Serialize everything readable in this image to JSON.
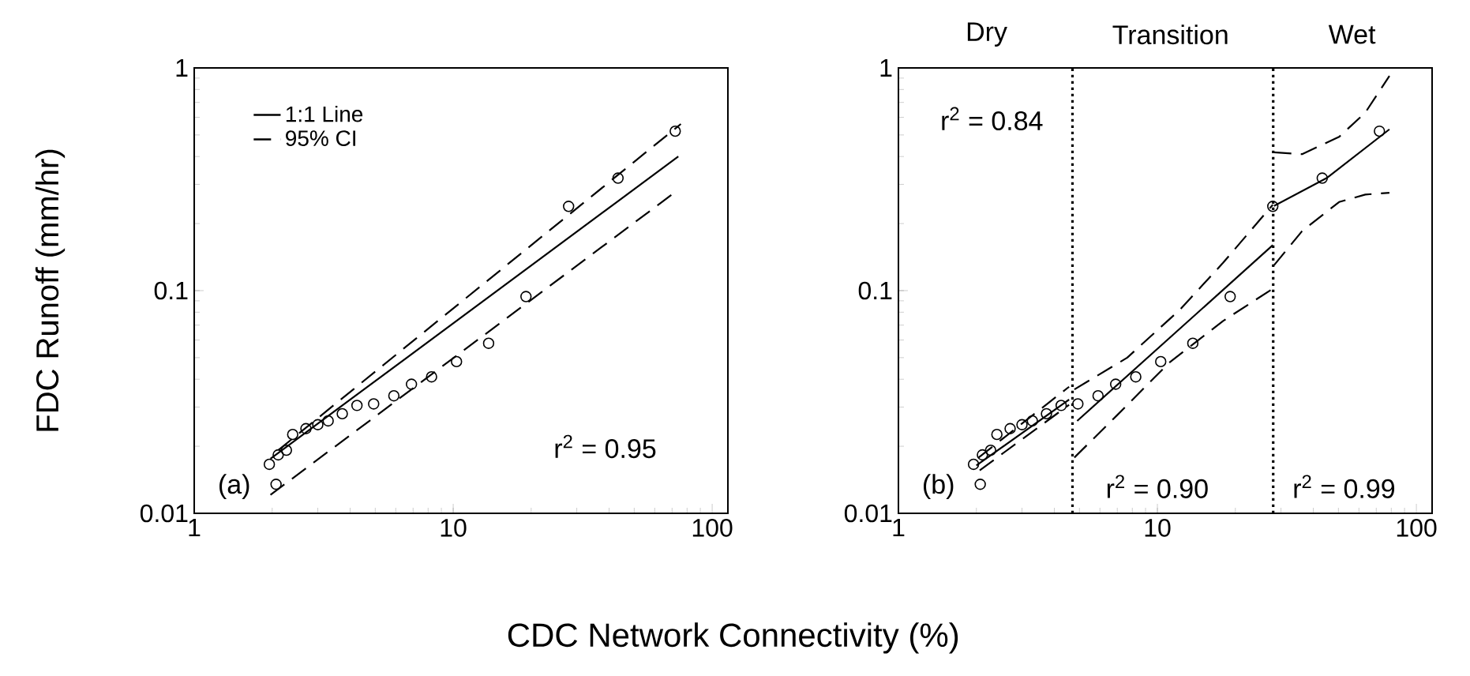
{
  "chart_data": [
    {
      "type": "scatter",
      "xlabel": "CDC Network Connectivity (%)",
      "ylabel": "FDC Runoff (mm/hr)",
      "log": "xy",
      "xlim": [
        1,
        115
      ],
      "ylim": [
        0.01,
        1
      ],
      "xticks": [
        1,
        10,
        100
      ],
      "yticks": [
        0.01,
        0.1,
        1
      ],
      "legend": "top left",
      "series": [
        {
          "marker": "circle",
          "color": "#000000",
          "x": [
            2.07,
            1.95,
            2.11,
            2.27,
            2.4,
            2.7,
            3.0,
            3.29,
            3.73,
            4.25,
            4.93,
            5.9,
            6.9,
            8.25,
            10.3,
            13.7,
            19.1,
            27.9,
            43.3,
            72
          ],
          "values": [
            0.0135,
            0.0166,
            0.0183,
            0.0192,
            0.0226,
            0.024,
            0.025,
            0.026,
            0.028,
            0.0305,
            0.031,
            0.0337,
            0.038,
            0.041,
            0.048,
            0.058,
            0.094,
            0.239,
            0.32,
            0.52
          ]
        },
        {
          "type": "line",
          "name": "1:1 Line",
          "line_style": "solid",
          "color": "#000000",
          "x": [
            1.97,
            74
          ],
          "values": [
            0.0176,
            0.4
          ]
        },
        {
          "type": "line",
          "name": "95% CI",
          "line_style": "dashed",
          "color": "#000000",
          "x": [
            2.11,
            75.7
          ],
          "values": [
            0.0192,
            0.56
          ]
        },
        {
          "type": "line",
          "line_style": "dashed",
          "color": "#000000",
          "x": [
            1.97,
            72
          ],
          "values": [
            0.0121,
            0.277
          ]
        }
      ],
      "annotations": [
        "r$^{2}$ = 0.95",
        "(a)"
      ]
    },
    {
      "type": "scatter",
      "log": "xy",
      "xlim": [
        1,
        115
      ],
      "ylim": [
        0.01,
        1
      ],
      "xticks": [
        1,
        10,
        100
      ],
      "yticks": [
        0.01,
        0.1,
        1
      ],
      "legend": false,
      "series": [
        {
          "marker": "circle",
          "color": "#000000",
          "x": [
            2.07,
            1.95,
            2.11,
            2.27,
            2.4,
            2.7,
            3.0,
            3.29,
            3.73,
            4.25,
            4.93,
            5.9,
            6.9,
            8.25,
            10.3,
            13.7,
            19.1,
            27.9,
            43.3,
            72
          ],
          "values": [
            0.0135,
            0.0166,
            0.0183,
            0.0192,
            0.0226,
            0.024,
            0.025,
            0.026,
            0.028,
            0.0305,
            0.031,
            0.0337,
            0.038,
            0.041,
            0.048,
            0.058,
            0.094,
            0.239,
            0.32,
            0.52
          ]
        },
        {
          "type": "line",
          "line_style": "solid",
          "color": "#000000",
          "x": [
            2.0,
            4.56
          ],
          "values": [
            0.0164,
            0.0324
          ]
        },
        {
          "type": "line",
          "line_style": "dashed",
          "color": "#000000",
          "x": [
            2.04,
            4.56
          ],
          "values": [
            0.0178,
            0.037
          ]
        },
        {
          "type": "line",
          "line_style": "dashed",
          "color": "#000000",
          "x": [
            2.06,
            4.56
          ],
          "values": [
            0.0156,
            0.0307
          ]
        },
        {
          "type": "line",
          "line_style": "solid",
          "color": "#000000",
          "x": [
            4.9,
            27.9
          ],
          "values": [
            0.026,
            0.16
          ]
        },
        {
          "type": "line",
          "line_style": "dashed",
          "color": "#000000",
          "x": [
            4.78,
            7.65,
            12.2,
            17.9,
            27.9
          ],
          "values": [
            0.036,
            0.05,
            0.082,
            0.133,
            0.243
          ]
        },
        {
          "type": "line",
          "line_style": "dashed",
          "color": "#000000",
          "x": [
            4.78,
            6.97,
            11.1,
            17.9,
            27.9
          ],
          "values": [
            0.0178,
            0.0275,
            0.0474,
            0.073,
            0.102
          ]
        },
        {
          "type": "line",
          "line_style": "solid",
          "color": "#000000",
          "x": [
            28.2,
            45,
            78.7
          ],
          "values": [
            0.24,
            0.32,
            0.53
          ]
        },
        {
          "type": "line",
          "line_style": "dashed",
          "color": "#000000",
          "x": [
            28.2,
            36.2,
            50.3,
            63.5,
            78.7
          ],
          "values": [
            0.418,
            0.41,
            0.49,
            0.63,
            0.92
          ]
        },
        {
          "type": "line",
          "line_style": "dashed",
          "color": "#000000",
          "x": [
            28.2,
            36.2,
            50.3,
            63.5,
            78.7
          ],
          "values": [
            0.13,
            0.185,
            0.25,
            0.27,
            0.275
          ]
        }
      ],
      "ref_lines": [
        {
          "axis": "x",
          "value": 4.7,
          "line_style": "dotted",
          "color": "#000000"
        },
        {
          "axis": "x",
          "value": 28,
          "line_style": "dotted",
          "color": "#000000"
        }
      ],
      "annotations": [
        "Dry",
        "Transition",
        "Wet",
        "r$^{2}$ = 0.84",
        "r$^{2}$ = 0.90",
        "r$^{2}$ = 0.99",
        "(b)"
      ]
    }
  ]
}
